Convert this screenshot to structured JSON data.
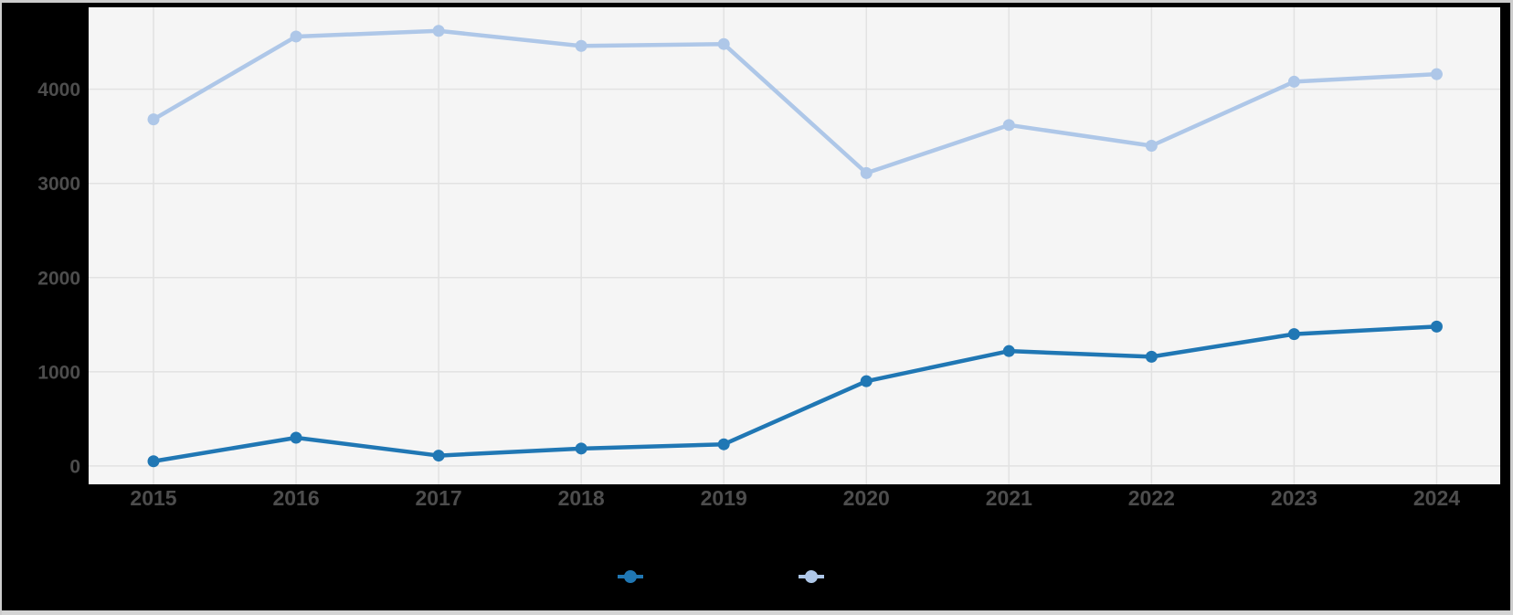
{
  "window": {
    "background": "#000000",
    "frame_color": "#cdcdcd",
    "frame_bottom_color": "#d4d4d4"
  },
  "chart_data": {
    "type": "line",
    "x_labels": [
      "2015",
      "2016",
      "2017",
      "2018",
      "2019",
      "2020",
      "2021",
      "2022",
      "2023",
      "2024"
    ],
    "series": [
      {
        "name": "dark-blue",
        "color": "#2077b4",
        "marker": "circle",
        "values": [
          50,
          300,
          110,
          185,
          230,
          900,
          1220,
          1160,
          1400,
          1480
        ]
      },
      {
        "name": "light-blue",
        "color": "#aec7e8",
        "marker": "circle",
        "values": [
          3680,
          4560,
          4620,
          4460,
          4480,
          3110,
          3620,
          3400,
          4080,
          4160
        ]
      }
    ],
    "y_ticks": [
      0,
      1000,
      2000,
      3000,
      4000
    ],
    "ylim": [
      -195,
      4870
    ],
    "grid": true,
    "plot_background": "#f5f5f5",
    "grid_color": "#e2e2e2",
    "axis_label_color": "#4d4d4d",
    "legend": {
      "position": "bottom-center",
      "items": [
        {
          "label": "",
          "color": "#2077b4"
        },
        {
          "label": "",
          "color": "#aec7e8"
        }
      ]
    }
  }
}
